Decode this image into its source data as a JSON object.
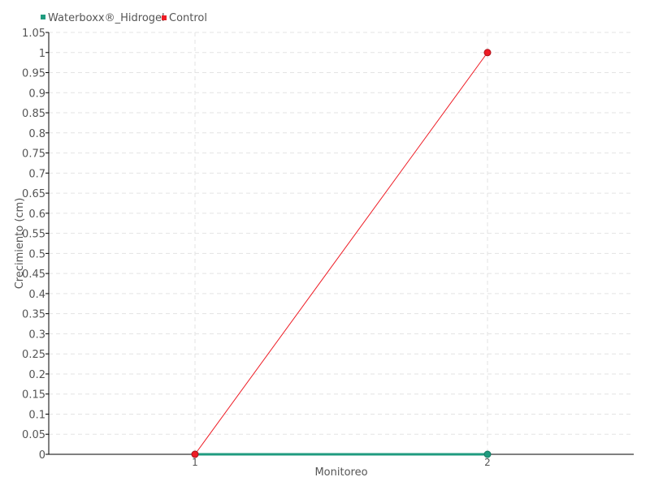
{
  "chart_data": {
    "type": "line",
    "xlabel": "Monitoreo",
    "ylabel": "Crecimiento (cm)",
    "x": [
      1,
      2
    ],
    "xlim": [
      0.5,
      2.5
    ],
    "ylim": [
      0,
      1.05
    ],
    "ytick_step": 0.05,
    "grid": true,
    "legend_position": "top-left",
    "series": [
      {
        "name": "Waterboxx®_Hidrogel",
        "values": [
          0,
          0
        ],
        "color": "#1f9b7f"
      },
      {
        "name": "Control",
        "values": [
          0,
          1
        ],
        "color": "#ee1c25"
      }
    ]
  }
}
